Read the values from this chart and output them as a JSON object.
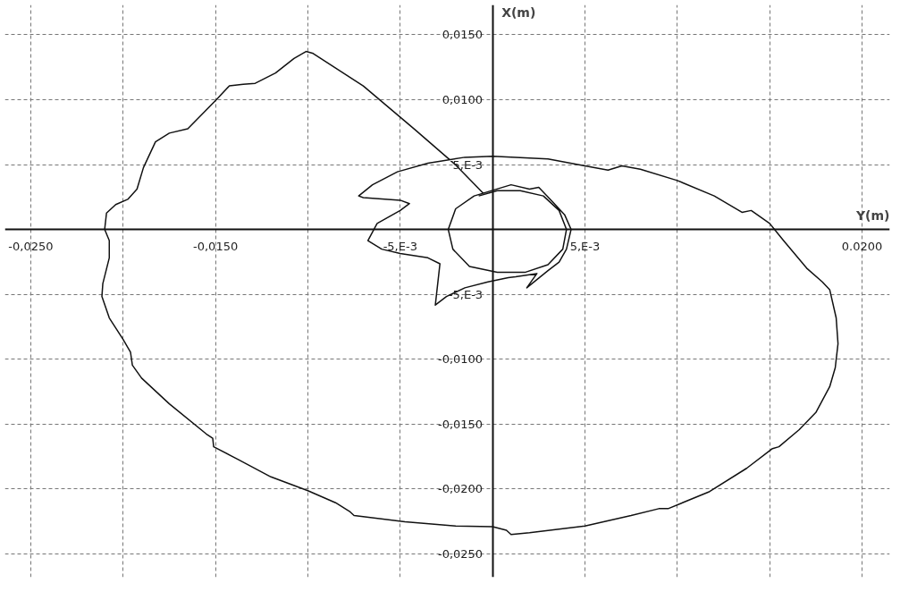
{
  "chart_data": {
    "type": "line",
    "xlabel": "Y(m)",
    "ylabel": "X(m)",
    "xlim": [
      -0.0264,
      0.0215
    ],
    "ylim": [
      -0.0268,
      0.0173
    ],
    "xticks": [
      {
        "value": -0.025,
        "label": "-0,0250"
      },
      {
        "value": -0.02,
        "label": null
      },
      {
        "value": -0.015,
        "label": "-0,0150"
      },
      {
        "value": -0.01,
        "label": null
      },
      {
        "value": -0.005,
        "label": "-5,E-3"
      },
      {
        "value": 0.005,
        "label": "5,E-3"
      },
      {
        "value": 0.01,
        "label": null
      },
      {
        "value": 0.015,
        "label": null
      },
      {
        "value": 0.02,
        "label": "0.0200"
      }
    ],
    "yticks": [
      {
        "value": -0.025,
        "label": "-0,0250"
      },
      {
        "value": -0.02,
        "label": "-0,0200"
      },
      {
        "value": -0.015,
        "label": "-0,0150"
      },
      {
        "value": -0.01,
        "label": "-0,0100"
      },
      {
        "value": -0.005,
        "label": "-5,E-3"
      },
      {
        "value": 0.005,
        "label": "5,E-3"
      },
      {
        "value": 0.01,
        "label": "0,0100"
      },
      {
        "value": 0.015,
        "label": "0,0150"
      }
    ],
    "grid": true,
    "line_style": "solid",
    "series": [
      {
        "color": "#111111",
        "x": [
          -0.00075,
          0.00025,
          0.0015,
          0.00275,
          0.0036,
          0.004,
          0.0038,
          0.003,
          0.00175,
          0.00025,
          -0.00125,
          -0.00215,
          -0.0024,
          -0.002,
          -0.001,
          0.001,
          0.002,
          0.0025,
          0.00325,
          0.0039,
          0.00425,
          0.004,
          0.0036,
          0.003,
          0.00185,
          0.0024,
          0.00125,
          0.00085,
          -0.00025,
          -0.0015,
          -0.0025,
          -0.0031,
          -0.00285,
          -0.0035,
          -0.005,
          -0.006,
          -0.00675,
          -0.00625,
          -0.005,
          -0.0045,
          -0.005,
          -0.007,
          -0.00725,
          -0.0065,
          -0.00515,
          -0.0035,
          -0.0015,
          0,
          0.003,
          0.005,
          0.00625,
          0.007,
          0.008,
          0.01,
          0.012,
          0.0135,
          0.014,
          0.015,
          0.01575,
          0.017,
          0.01785,
          0.01825,
          0.0186,
          0.0187,
          0.01855,
          0.01825,
          0.0175,
          0.0166,
          0.0155,
          0.01515,
          0.01375,
          0.01175,
          0.0095,
          0.009,
          0.0075,
          0.005,
          0.002,
          0.001,
          0.00075,
          0,
          -0.002,
          -0.00475,
          -0.0075,
          -0.00775,
          -0.0085,
          -0.01,
          -0.012,
          -0.01375,
          -0.0151,
          -0.01515,
          -0.0155,
          -0.0175,
          -0.019,
          -0.0195,
          -0.0196,
          -0.02,
          -0.02075,
          -0.02115,
          -0.0211,
          -0.02075,
          -0.02075,
          -0.021,
          -0.0209,
          -0.0204,
          -0.01975,
          -0.01925,
          -0.0189,
          -0.01825,
          -0.0175,
          -0.0165,
          -0.015,
          -0.01425,
          -0.0135,
          -0.01285,
          -0.01175,
          -0.01075,
          -0.0101,
          -0.00975,
          -0.007,
          -0.00425,
          -0.002,
          -0.0005
        ],
        "values": [
          0.00258,
          0.00298,
          0.00298,
          0.00258,
          0.00146,
          0,
          -0.00152,
          -0.00272,
          -0.00331,
          -0.00331,
          -0.00285,
          -0.00152,
          0,
          0.00159,
          0.00258,
          0.00344,
          0.00311,
          0.00325,
          0.00212,
          0.00113,
          0,
          -0.00152,
          -0.00252,
          -0.00318,
          -0.0045,
          -0.0034,
          -0.00364,
          -0.00371,
          -0.00404,
          -0.0045,
          -0.00517,
          -0.00583,
          -0.00265,
          -0.00219,
          -0.00185,
          -0.00152,
          -0.00086,
          0.00046,
          0.00146,
          0.00199,
          0.00225,
          0.00245,
          0.00258,
          0.00344,
          0.00444,
          0.0051,
          0.00556,
          0.00563,
          0.00543,
          0.0049,
          0.00457,
          0.0049,
          0.00464,
          0.00377,
          0.00258,
          0.00132,
          0.00146,
          0.00046,
          -0.00086,
          -0.00298,
          -0.00404,
          -0.00464,
          -0.00682,
          -0.00881,
          -0.01066,
          -0.01212,
          -0.01411,
          -0.01543,
          -0.01675,
          -0.01689,
          -0.01841,
          -0.0202,
          -0.02152,
          -0.02152,
          -0.02205,
          -0.02285,
          -0.02338,
          -0.02351,
          -0.02318,
          -0.02291,
          -0.02285,
          -0.02252,
          -0.02205,
          -0.02172,
          -0.02106,
          -0.02013,
          -0.01907,
          -0.01775,
          -0.01675,
          -0.01609,
          -0.01576,
          -0.01344,
          -0.01146,
          -0.01046,
          -0.00947,
          -0.00848,
          -0.00682,
          -0.00517,
          -0.00417,
          -0.00219,
          -0.00086,
          0,
          0.00126,
          0.00192,
          0.00232,
          0.00311,
          0.00477,
          0.00675,
          0.00742,
          0.00775,
          0.00993,
          0.01106,
          0.01119,
          0.01126,
          0.01205,
          0.01318,
          0.01371,
          0.01358,
          0.01106,
          0.00775,
          0.00497,
          0.00278
        ]
      }
    ]
  }
}
